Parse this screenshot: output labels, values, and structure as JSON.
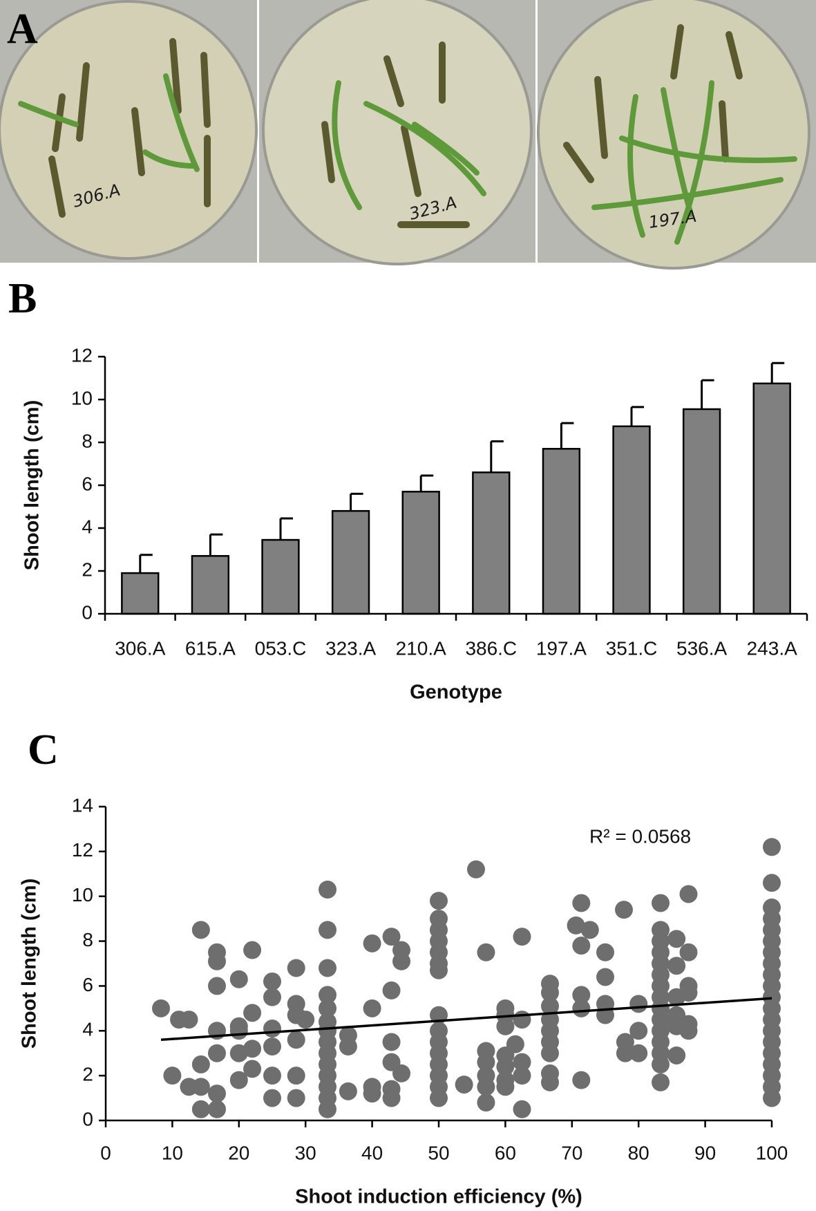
{
  "panels": {
    "a": "A",
    "b": "B",
    "c": "C"
  },
  "photo_labels": [
    "306.A",
    "323.A",
    "197.A"
  ],
  "chart_data": [
    {
      "type": "bar",
      "xlabel": "Genotype",
      "ylabel": "Shoot length (cm)",
      "categories": [
        "306.A",
        "615.A",
        "053.C",
        "323.A",
        "210.A",
        "386.C",
        "197.A",
        "351.C",
        "536.A",
        "243.A"
      ],
      "values": [
        1.9,
        2.7,
        3.45,
        4.8,
        5.7,
        6.6,
        7.7,
        8.75,
        9.55,
        10.75
      ],
      "errors": [
        0.85,
        1.0,
        1.0,
        0.8,
        0.75,
        1.45,
        1.2,
        0.9,
        1.35,
        0.95
      ],
      "color": "#808080",
      "ylim": [
        0,
        12
      ],
      "yticks": [
        0,
        2,
        4,
        6,
        8,
        10,
        12
      ]
    },
    {
      "type": "scatter",
      "xlabel": "Shoot induction efficiency (%)",
      "ylabel": "Shoot length (cm)",
      "annotation": "R² = 0.0568",
      "color": "#6e6e6e",
      "x": [
        8.3,
        10,
        11,
        12.5,
        12.5,
        14.3,
        14.3,
        14.3,
        14.3,
        16.7,
        16.7,
        16.7,
        16.7,
        16.7,
        16.7,
        16.7,
        20,
        20,
        20,
        20,
        20,
        22,
        22,
        22,
        22,
        25,
        25,
        25,
        25,
        25,
        25,
        28.6,
        28.6,
        28.6,
        28.6,
        28.6,
        28.6,
        30,
        33.3,
        33.3,
        33.3,
        33.3,
        33.3,
        33.3,
        33.3,
        33.3,
        33.3,
        33.3,
        33.3,
        33.3,
        33.3,
        33.3,
        36.4,
        36.4,
        36.4,
        40,
        40,
        40,
        40,
        42.9,
        42.9,
        42.9,
        42.9,
        42.9,
        42.9,
        44.4,
        44.4,
        44.4,
        50,
        50,
        50,
        50,
        50,
        50,
        50,
        50,
        50,
        50,
        50,
        50,
        50,
        50,
        50,
        53.8,
        55.6,
        57.1,
        57.1,
        57.1,
        57.1,
        57.1,
        57.1,
        60,
        60,
        60,
        60,
        60,
        60,
        60,
        61.5,
        62.5,
        62.5,
        62.5,
        62.5,
        62.5,
        66.7,
        66.7,
        66.7,
        66.7,
        66.7,
        66.7,
        66.7,
        66.7,
        66.7,
        70.6,
        71.4,
        71.4,
        71.4,
        71.4,
        71.4,
        72.7,
        75,
        75,
        75,
        75,
        77.8,
        78,
        78,
        80,
        80,
        80,
        83.3,
        83.3,
        83.3,
        83.3,
        83.3,
        83.3,
        83.3,
        83.3,
        83.3,
        83.3,
        83.3,
        83.3,
        83.3,
        83.3,
        83.3,
        85.7,
        85.7,
        85.7,
        85.7,
        85.7,
        85.7,
        87.5,
        87.5,
        87.5,
        87.5,
        87.5,
        87.5,
        100,
        100,
        100,
        100,
        100,
        100,
        100,
        100,
        100,
        100,
        100,
        100,
        100,
        100,
        100,
        100,
        100,
        100,
        100,
        100
      ],
      "values": [
        5.0,
        2.0,
        4.5,
        4.5,
        1.5,
        8.5,
        2.5,
        1.5,
        0.5,
        7.5,
        7.1,
        6.0,
        4.0,
        3.0,
        1.2,
        0.5,
        6.3,
        4.2,
        4.0,
        3.0,
        1.8,
        7.6,
        4.8,
        3.2,
        2.3,
        6.2,
        5.5,
        4.1,
        3.3,
        2.0,
        1.0,
        6.8,
        5.2,
        4.7,
        3.6,
        2.0,
        1.0,
        4.5,
        10.3,
        8.5,
        6.8,
        5.6,
        5.0,
        4.4,
        4.0,
        3.5,
        3.0,
        2.5,
        2.0,
        1.5,
        1.0,
        0.5,
        3.8,
        3.3,
        1.3,
        7.9,
        5.0,
        1.5,
        1.2,
        8.2,
        5.8,
        3.5,
        2.6,
        1.4,
        1.0,
        7.6,
        7.1,
        2.1,
        9.8,
        9.0,
        8.5,
        8.0,
        7.5,
        7.0,
        6.7,
        4.7,
        4.0,
        3.5,
        3.0,
        2.5,
        2.0,
        1.5,
        1.0,
        1.6,
        11.2,
        7.5,
        3.1,
        2.6,
        2.0,
        1.5,
        0.8,
        5.0,
        4.7,
        4.2,
        2.9,
        2.4,
        1.8,
        1.5,
        3.4,
        8.2,
        4.5,
        2.6,
        2.0,
        0.5,
        6.1,
        5.7,
        5.1,
        4.5,
        4.0,
        3.5,
        3.0,
        2.1,
        1.7,
        8.7,
        9.7,
        7.8,
        5.6,
        5.0,
        1.8,
        8.5,
        7.5,
        6.4,
        5.2,
        4.7,
        9.4,
        3.5,
        3.0,
        5.2,
        4.0,
        3.0,
        9.7,
        8.5,
        8.0,
        7.5,
        7.0,
        6.5,
        6.0,
        5.5,
        5.0,
        4.5,
        4.0,
        3.5,
        3.0,
        2.5,
        1.7,
        8.1,
        6.9,
        5.5,
        4.7,
        4.2,
        2.9,
        10.1,
        7.5,
        6.0,
        5.7,
        4.3,
        4.0,
        12.2,
        10.6,
        9.5,
        9.0,
        8.5,
        8.0,
        7.5,
        7.0,
        6.5,
        6.0,
        5.5,
        5.0,
        4.5,
        4.0,
        3.5,
        3.0,
        2.5,
        2.0,
        1.5,
        1.0
      ],
      "trendline": {
        "x": [
          8.3,
          100
        ],
        "values": [
          3.6,
          5.45
        ]
      },
      "xlim": [
        0,
        100
      ],
      "xticks": [
        0,
        10,
        20,
        30,
        40,
        50,
        60,
        70,
        80,
        90,
        100
      ],
      "ylim": [
        0,
        14
      ],
      "yticks": [
        0,
        2,
        4,
        6,
        8,
        10,
        12,
        14
      ]
    }
  ]
}
